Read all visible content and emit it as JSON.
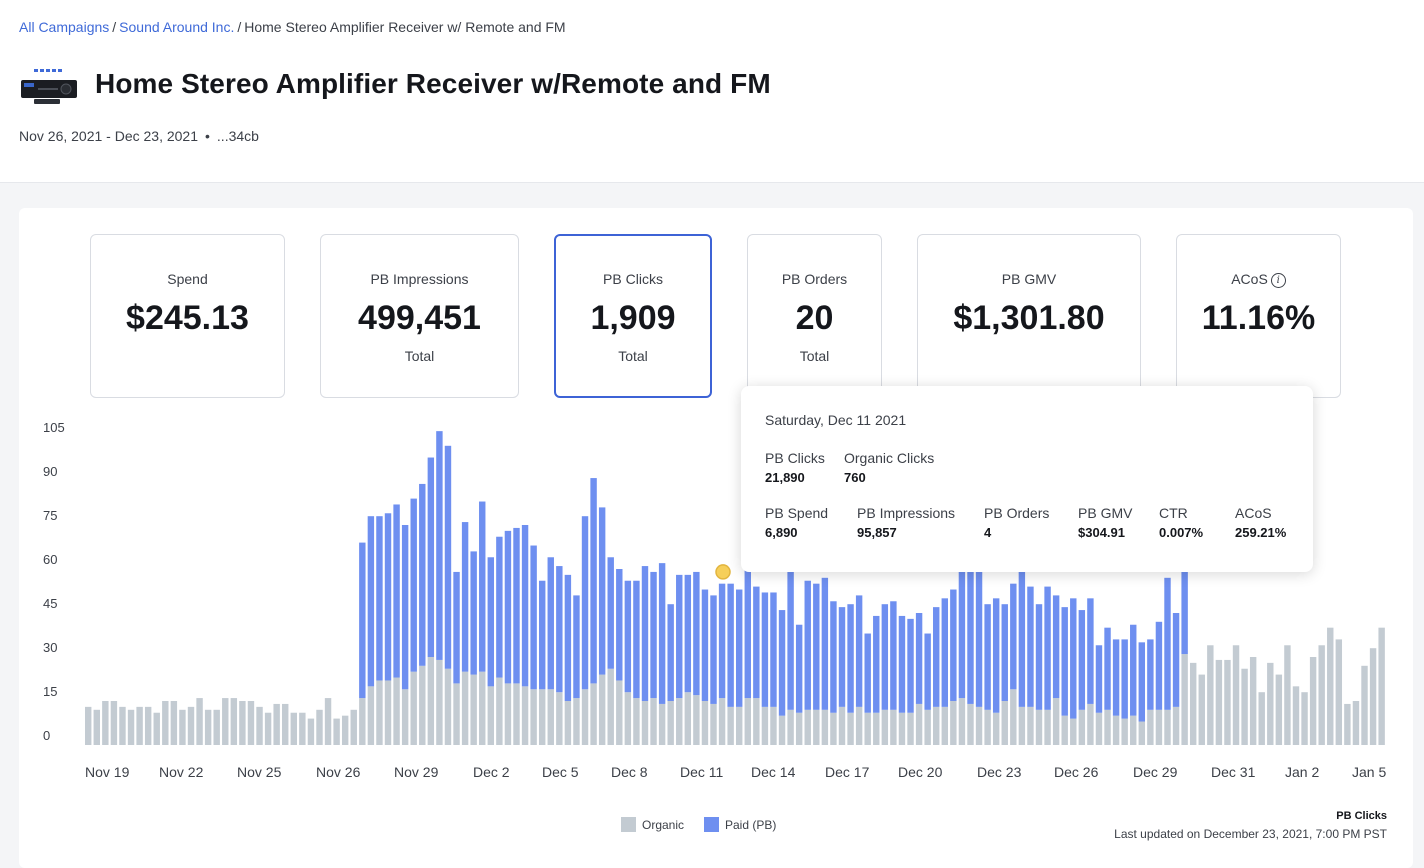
{
  "breadcrumb": {
    "items": [
      "All Campaigns",
      "Sound Around Inc.",
      "Home Stereo Amplifier Receiver w/ Remote and FM"
    ],
    "separator": "/"
  },
  "page": {
    "title": "Home Stereo Amplifier Receiver w/Remote and FM",
    "date_range": "Nov 26, 2021 - Dec 23, 2021",
    "bullet": "•",
    "id_suffix": "...34cb"
  },
  "metrics": [
    {
      "label": "Spend",
      "value": "$245.13",
      "sub": ""
    },
    {
      "label": "PB Impressions",
      "value": "499,451",
      "sub": "Total"
    },
    {
      "label": "PB Clicks",
      "value": "1,909",
      "sub": "Total",
      "selected": true
    },
    {
      "label": "PB Orders",
      "value": "20",
      "sub": "Total"
    },
    {
      "label": "PB GMV",
      "value": "$1,301.80",
      "sub": ""
    },
    {
      "label": "ACoS",
      "value": "11.16%",
      "sub": "",
      "info_icon": "info-icon"
    }
  ],
  "tooltip": {
    "date": "Saturday, Dec 11 2021",
    "row1": [
      {
        "label": "PB Clicks",
        "value": "21,890"
      },
      {
        "label": "Organic Clicks",
        "value": "760"
      }
    ],
    "row2": [
      {
        "label": "PB Spend",
        "value": "6,890"
      },
      {
        "label": "PB Impressions",
        "value": "95,857"
      },
      {
        "label": "PB Orders",
        "value": "4"
      },
      {
        "label": "PB GMV",
        "value": "$304.91"
      },
      {
        "label": "CTR",
        "value": "0.007%"
      },
      {
        "label": "ACoS",
        "value": "259.21%"
      }
    ]
  },
  "legend": [
    {
      "label": "Organic",
      "color": "#c3cbd2"
    },
    {
      "label": "Paid (PB)",
      "color": "#6e8ff0"
    }
  ],
  "footer": {
    "metric": "PB Clicks",
    "updated": "Last updated on December 23, 2021, 7:00 PM PST"
  },
  "colors": {
    "accent": "#3d63d6",
    "link": "#3f6ad8",
    "organic": "#c3cbd2",
    "paid": "#6e8ff0",
    "hover_marker": "#f6cf5a"
  },
  "chart_data": {
    "type": "bar",
    "stacked": true,
    "title": "",
    "xlabel": "",
    "ylabel": "",
    "ylim": [
      0,
      110
    ],
    "y_ticks": [
      0,
      15,
      30,
      45,
      60,
      75,
      90,
      105
    ],
    "x_tick_labels": [
      "Nov 19",
      "Nov 22",
      "Nov 25",
      "Nov 26",
      "Nov 29",
      "Dec 2",
      "Dec 5",
      "Dec 8",
      "Dec 11",
      "Dec 14",
      "Dec 17",
      "Dec 20",
      "Dec 23",
      "Dec 26",
      "Dec 29",
      "Dec 31",
      "Jan 2",
      "Jan 5"
    ],
    "hover_point": {
      "label": "Dec 11",
      "value": 59
    },
    "series": [
      {
        "name": "Organic",
        "values": [
          13,
          12,
          15,
          15,
          13,
          12,
          13,
          13,
          11,
          15,
          15,
          12,
          13,
          16,
          12,
          12,
          16,
          16,
          15,
          15,
          13,
          11,
          14,
          14,
          11,
          11,
          9,
          12,
          16,
          9,
          10,
          12,
          16,
          20,
          22,
          22,
          23,
          19,
          25,
          27,
          30,
          29,
          26,
          21,
          25,
          24,
          25,
          20,
          23,
          21,
          21,
          20,
          19,
          19,
          19,
          18,
          15,
          16,
          19,
          21,
          24,
          26,
          22,
          18,
          16,
          15,
          16,
          14,
          15,
          16,
          18,
          17,
          15,
          14,
          16,
          13,
          13,
          16,
          16,
          13,
          13,
          10,
          12,
          11,
          12,
          12,
          12,
          11,
          13,
          11,
          13,
          11,
          11,
          12,
          12,
          11,
          11,
          14,
          12,
          13,
          13,
          15,
          16,
          14,
          13,
          12,
          11,
          15,
          19,
          13,
          13,
          12,
          12,
          16,
          10,
          9,
          12,
          14,
          11,
          12,
          10,
          9,
          10,
          8,
          12,
          12,
          12,
          13,
          31,
          28,
          24,
          34,
          29,
          29,
          34,
          26,
          30,
          18,
          28,
          24,
          34,
          20,
          18,
          30,
          34,
          40,
          36,
          14,
          15,
          27,
          33,
          40
        ]
      },
      {
        "name": "Paid (PB)",
        "values": [
          0,
          0,
          0,
          0,
          0,
          0,
          0,
          0,
          0,
          0,
          0,
          0,
          0,
          0,
          0,
          0,
          0,
          0,
          0,
          0,
          0,
          0,
          0,
          0,
          0,
          0,
          0,
          0,
          0,
          0,
          0,
          0,
          53,
          58,
          56,
          57,
          59,
          56,
          59,
          62,
          68,
          78,
          76,
          38,
          51,
          42,
          58,
          44,
          48,
          52,
          53,
          55,
          49,
          37,
          45,
          43,
          43,
          35,
          59,
          70,
          57,
          38,
          38,
          38,
          40,
          46,
          43,
          48,
          33,
          42,
          40,
          42,
          38,
          37,
          39,
          42,
          40,
          44,
          38,
          39,
          39,
          36,
          47,
          30,
          44,
          43,
          45,
          38,
          34,
          37,
          38,
          27,
          33,
          36,
          37,
          33,
          32,
          31,
          26,
          34,
          37,
          38,
          45,
          51,
          50,
          36,
          39,
          33,
          36,
          47,
          41,
          36,
          42,
          35,
          37,
          41,
          34,
          36,
          23,
          28,
          26,
          27,
          31,
          27,
          24,
          30,
          45,
          32,
          56,
          0,
          0,
          0,
          0,
          0,
          0,
          0,
          0,
          0,
          0,
          0,
          0,
          0,
          0,
          0,
          0,
          0,
          0,
          0,
          0,
          0,
          0,
          0,
          0,
          0
        ]
      }
    ]
  }
}
